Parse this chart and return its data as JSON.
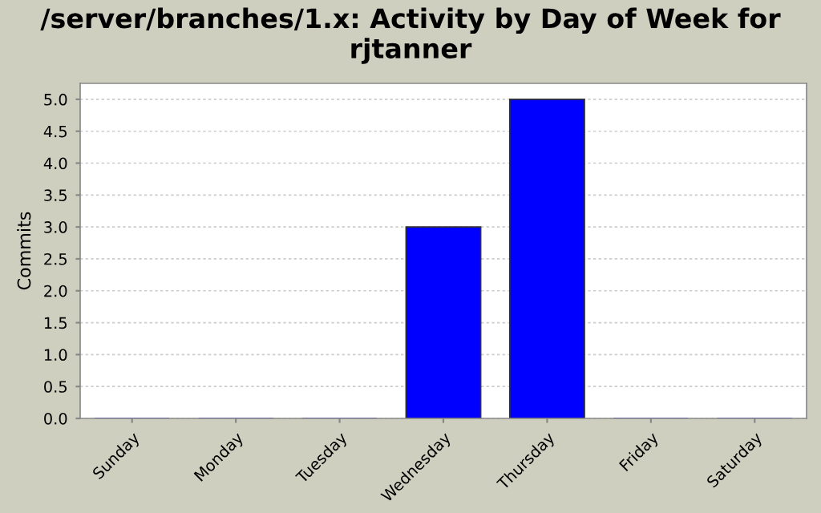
{
  "chart_data": {
    "type": "bar",
    "title": "/server/branches/1.x: Activity by Day of Week for rjtanner",
    "ylabel": "Commits",
    "categories": [
      "Sunday",
      "Monday",
      "Tuesday",
      "Wednesday",
      "Thursday",
      "Friday",
      "Saturday"
    ],
    "values": [
      0,
      0,
      0,
      3,
      5,
      0,
      0
    ],
    "color": "#0000ff",
    "ylim": [
      0,
      5.25
    ],
    "yticks": [
      {
        "value": 0,
        "label": "0.0"
      },
      {
        "value": 0.5,
        "label": "0.5"
      },
      {
        "value": 1,
        "label": "1.0"
      },
      {
        "value": 1.5,
        "label": "1.5"
      },
      {
        "value": 2,
        "label": "2.0"
      },
      {
        "value": 2.5,
        "label": "2.5"
      },
      {
        "value": 3,
        "label": "3.0"
      },
      {
        "value": 3.5,
        "label": "3.5"
      },
      {
        "value": 4,
        "label": "4.0"
      },
      {
        "value": 4.5,
        "label": "4.5"
      },
      {
        "value": 5,
        "label": "5.0"
      }
    ],
    "grid": "y"
  }
}
